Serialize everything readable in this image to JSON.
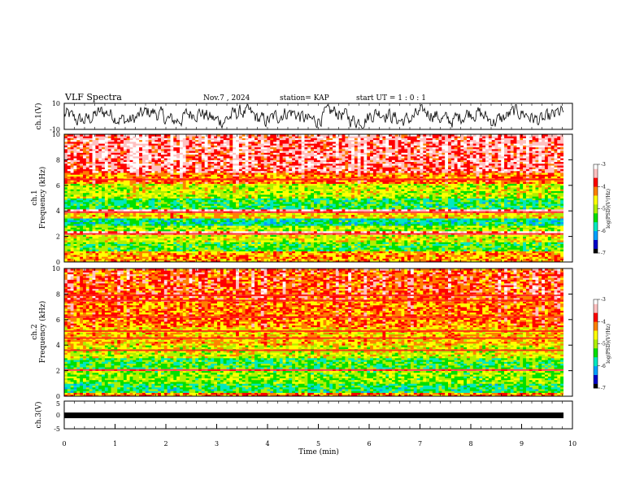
{
  "header": {
    "title": "VLF Spectra",
    "date": "Nov.7  , 2024",
    "station": "station= KAP",
    "start": "start  UT  =   1 : 0  : 1"
  },
  "chart_data": [
    {
      "type": "line",
      "panel": "ch1-waveform",
      "ylabel": "ch.1(V)",
      "ylim": [
        -10,
        10
      ],
      "yticks": [
        "10",
        "-10"
      ],
      "xlim": [
        0,
        10
      ],
      "line_color": "#000000",
      "note_series": "noisy voltage trace oscillating roughly between -8 and 8 V"
    },
    {
      "type": "heatmap",
      "panel": "ch1-spectrogram",
      "ylabel": "ch.1\nFrequency (kHz)",
      "ylabel_line1": "ch.1",
      "ylabel_line2": "Frequency (kHz)",
      "ylim": [
        0,
        10
      ],
      "yticks": [
        "0",
        "2",
        "4",
        "6",
        "8",
        "10"
      ],
      "xlim": [
        0,
        9.85
      ],
      "colorbar": {
        "label": "log(PSD)(V²/Hz)",
        "range": [
          -7,
          -3
        ],
        "ticks": [
          "-3",
          "-4",
          "-5",
          "-6",
          "-7"
        ],
        "colors": [
          "#000000",
          "#0000c8",
          "#00a0ff",
          "#00e8c0",
          "#00e000",
          "#b0f000",
          "#ffff00",
          "#ff8000",
          "#ff0000",
          "#ffc0c0",
          "#ffffff"
        ]
      },
      "frequency_profile_khz": [
        {
          "f": [
            0.0,
            0.9
          ],
          "level": -4.3
        },
        {
          "f": [
            0.9,
            1.6
          ],
          "level": -5.3
        },
        {
          "f": [
            1.6,
            2.2
          ],
          "level": -4.8
        },
        {
          "f": [
            2.2,
            2.4
          ],
          "level": -3.3
        },
        {
          "f": [
            2.4,
            2.9
          ],
          "level": -5.0
        },
        {
          "f": [
            2.9,
            3.5
          ],
          "level": -5.7
        },
        {
          "f": [
            3.5,
            3.9
          ],
          "level": -4.6
        },
        {
          "f": [
            3.9,
            4.1
          ],
          "level": -3.3
        },
        {
          "f": [
            4.1,
            5.0
          ],
          "level": -5.5
        },
        {
          "f": [
            5.0,
            6.2
          ],
          "level": -4.9
        },
        {
          "f": [
            6.2,
            7.0
          ],
          "level": -4.2
        },
        {
          "f": [
            7.0,
            10.0
          ],
          "level": -3.6
        }
      ]
    },
    {
      "type": "heatmap",
      "panel": "ch2-spectrogram",
      "ylabel_line1": "ch.2",
      "ylabel_line2": "Frequency (kHz)",
      "ylim": [
        0,
        10
      ],
      "yticks": [
        "0",
        "2",
        "4",
        "6",
        "8",
        "10"
      ],
      "xlim": [
        0,
        9.85
      ],
      "colorbar": {
        "label": "log(PSD)(V²/Hz)",
        "range": [
          -7,
          -3
        ],
        "ticks": [
          "-3",
          "-4",
          "-5",
          "-6",
          "-7"
        ],
        "colors": [
          "#000000",
          "#0000c8",
          "#00a0ff",
          "#00e8c0",
          "#00e000",
          "#b0f000",
          "#ffff00",
          "#ff8000",
          "#ff0000",
          "#ffc0c0",
          "#ffffff"
        ]
      },
      "frequency_profile_khz": [
        {
          "f": [
            0.0,
            0.3
          ],
          "level": -4.2
        },
        {
          "f": [
            0.3,
            1.0
          ],
          "level": -5.5
        },
        {
          "f": [
            1.0,
            2.0
          ],
          "level": -5.1
        },
        {
          "f": [
            2.0,
            2.2
          ],
          "level": -3.4
        },
        {
          "f": [
            2.2,
            3.0
          ],
          "level": -5.4
        },
        {
          "f": [
            3.0,
            4.0
          ],
          "level": -4.8
        },
        {
          "f": [
            4.0,
            5.5
          ],
          "level": -4.5
        },
        {
          "f": [
            5.5,
            7.5
          ],
          "level": -4.2
        },
        {
          "f": [
            7.5,
            10.0
          ],
          "level": -4.0
        }
      ],
      "bright_lines_khz": [
        2.05,
        3.6,
        4.55,
        5.1,
        6.2,
        7.5,
        7.9
      ]
    },
    {
      "type": "line",
      "panel": "ch3-waveform",
      "ylabel": "ch.3(V)",
      "ylim": [
        -5,
        5
      ],
      "yticks": [
        "5",
        "0",
        "-5"
      ],
      "xlim": [
        0,
        10
      ],
      "xticks": [
        "0",
        "1",
        "2",
        "3",
        "4",
        "5",
        "6",
        "7",
        "8",
        "9",
        "10"
      ],
      "xlabel": "Time (min)",
      "band_level_v": [
        -0.6,
        0.6
      ]
    }
  ]
}
